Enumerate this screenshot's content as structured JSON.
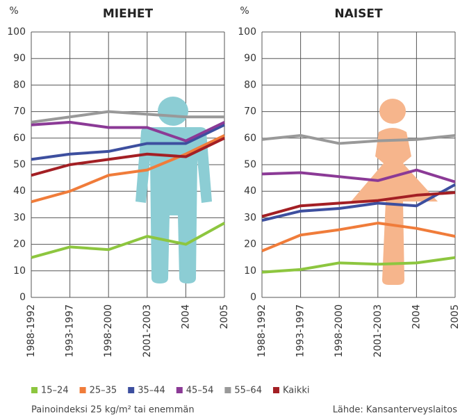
{
  "chart_data": [
    {
      "type": "line",
      "title": "MIEHET",
      "y_label": "%",
      "categories": [
        "1988-1992",
        "1993-1997",
        "1998-2000",
        "2001-2003",
        "2004",
        "2005"
      ],
      "ylim": [
        0,
        100
      ],
      "yticks": [
        0,
        10,
        20,
        30,
        40,
        50,
        60,
        70,
        80,
        90,
        100
      ],
      "grid": true,
      "series": [
        {
          "name": "15–24",
          "color": "#8dc63f",
          "values": [
            15,
            19,
            18,
            23,
            20,
            28
          ]
        },
        {
          "name": "25–35",
          "color": "#f07c3a",
          "values": [
            36,
            40,
            46,
            48,
            54,
            61
          ]
        },
        {
          "name": "35–44",
          "color": "#3d4f9f",
          "values": [
            52,
            54,
            55,
            58,
            58,
            65
          ]
        },
        {
          "name": "45–54",
          "color": "#8b3a96",
          "values": [
            65,
            66,
            64,
            64,
            59,
            66
          ]
        },
        {
          "name": "55–64",
          "color": "#999999",
          "values": [
            66,
            68,
            70,
            69,
            68,
            68
          ]
        },
        {
          "name": "Kaikki",
          "color": "#a31f24",
          "values": [
            46,
            50,
            52,
            54,
            53,
            60
          ]
        }
      ]
    },
    {
      "type": "line",
      "title": "NAISET",
      "y_label": "%",
      "categories": [
        "1988-1992",
        "1993-1997",
        "1998-2000",
        "2001-2003",
        "2004",
        "2005"
      ],
      "ylim": [
        0,
        100
      ],
      "yticks": [
        0,
        10,
        20,
        30,
        40,
        50,
        60,
        70,
        80,
        90,
        100
      ],
      "grid": true,
      "series": [
        {
          "name": "15–24",
          "color": "#8dc63f",
          "values": [
            9.5,
            10.5,
            13,
            12.5,
            13,
            15
          ]
        },
        {
          "name": "25–35",
          "color": "#f07c3a",
          "values": [
            17.5,
            23.5,
            25.5,
            28,
            26,
            23
          ]
        },
        {
          "name": "35–44",
          "color": "#3d4f9f",
          "values": [
            29,
            32.5,
            33.5,
            35.5,
            34.5,
            42.5
          ]
        },
        {
          "name": "45–54",
          "color": "#8b3a96",
          "values": [
            46.5,
            47,
            45.5,
            44,
            48,
            43.5
          ]
        },
        {
          "name": "55–64",
          "color": "#999999",
          "values": [
            59.5,
            61,
            58,
            59,
            59.5,
            61
          ]
        },
        {
          "name": "Kaikki",
          "color": "#a31f24",
          "values": [
            30.5,
            34.5,
            35.5,
            36.5,
            38.5,
            39.5
          ]
        }
      ]
    }
  ],
  "footnote": "Painoindeksi 25 kg/m² tai enemmän",
  "source": "Lähde: Kansanterveyslaitos"
}
